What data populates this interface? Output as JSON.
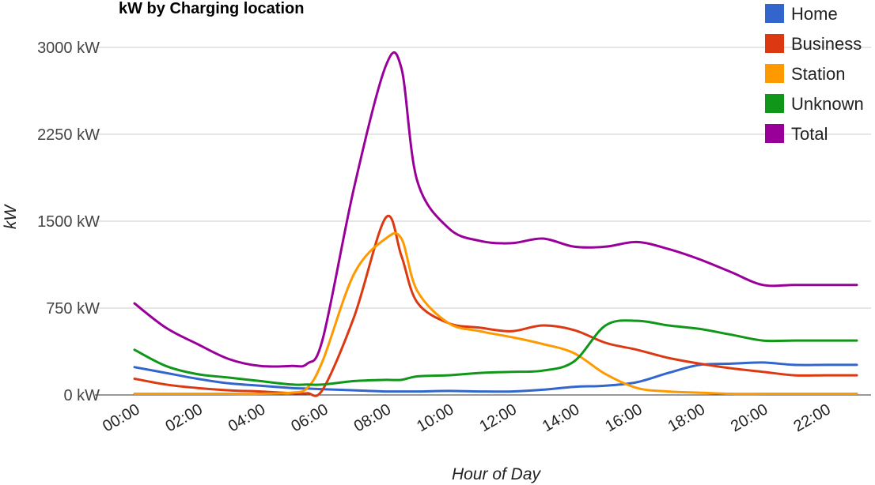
{
  "chart_data": {
    "type": "line",
    "title": "kW by Charging location",
    "xlabel": "Hour of Day",
    "ylabel": "kW",
    "x": [
      0,
      1,
      2,
      3,
      4,
      5,
      5.5,
      6,
      7,
      8,
      8.5,
      9,
      10,
      11,
      12,
      13,
      14,
      15,
      16,
      17,
      18,
      19,
      20,
      21,
      22,
      23
    ],
    "x_tick_values": [
      0,
      2,
      4,
      6,
      8,
      10,
      12,
      14,
      16,
      18,
      20,
      22
    ],
    "x_tick_labels": [
      "00:00",
      "02:00",
      "04:00",
      "06:00",
      "08:00",
      "10:00",
      "12:00",
      "14:00",
      "16:00",
      "18:00",
      "20:00",
      "22:00"
    ],
    "xlim": [
      0,
      23
    ],
    "ylim": [
      0,
      3000
    ],
    "y_tick_values": [
      0,
      750,
      1500,
      2250,
      3000
    ],
    "y_tick_labels": [
      "0 kW",
      "750 kW",
      "1500 kW",
      "2250 kW",
      "3000 kW"
    ],
    "grid": true,
    "legend_position": "top-right",
    "series": [
      {
        "name": "Home",
        "color": "#3366cc",
        "values": [
          240,
          190,
          140,
          100,
          80,
          60,
          55,
          50,
          40,
          30,
          30,
          30,
          35,
          30,
          30,
          45,
          70,
          80,
          110,
          190,
          260,
          270,
          280,
          260,
          260,
          260
        ]
      },
      {
        "name": "Business",
        "color": "#dc3912",
        "values": [
          140,
          90,
          60,
          40,
          30,
          15,
          15,
          50,
          680,
          1530,
          1200,
          800,
          620,
          580,
          550,
          600,
          560,
          450,
          390,
          320,
          270,
          230,
          200,
          170,
          170,
          170
        ]
      },
      {
        "name": "Station",
        "color": "#ff9900",
        "values": [
          10,
          10,
          10,
          10,
          10,
          20,
          60,
          300,
          1050,
          1350,
          1350,
          900,
          620,
          550,
          500,
          440,
          360,
          180,
          60,
          30,
          20,
          10,
          10,
          10,
          10,
          10
        ]
      },
      {
        "name": "Unknown",
        "color": "#109618",
        "values": [
          390,
          250,
          180,
          150,
          120,
          90,
          90,
          90,
          120,
          130,
          130,
          160,
          170,
          190,
          200,
          210,
          290,
          600,
          640,
          600,
          570,
          520,
          470,
          470,
          470,
          470
        ]
      },
      {
        "name": "Total",
        "color": "#990099",
        "values": [
          790,
          580,
          440,
          310,
          250,
          250,
          270,
          490,
          1800,
          2840,
          2820,
          1850,
          1440,
          1330,
          1310,
          1350,
          1280,
          1280,
          1320,
          1260,
          1170,
          1060,
          950,
          950,
          950,
          950
        ]
      }
    ]
  }
}
